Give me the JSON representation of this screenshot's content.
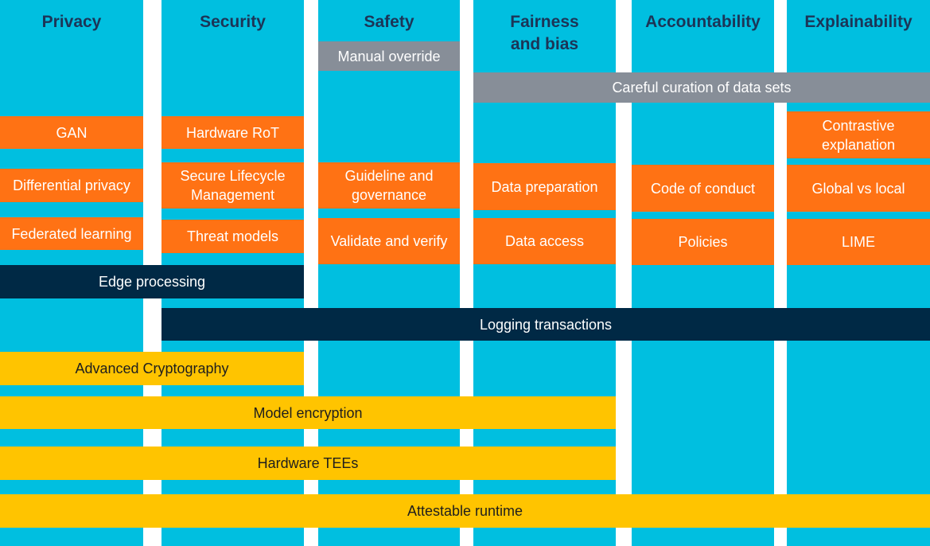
{
  "columns": [
    {
      "title": "Privacy"
    },
    {
      "title": "Security"
    },
    {
      "title": "Safety"
    },
    {
      "title": "Fairness\nand bias"
    },
    {
      "title": "Accountability"
    },
    {
      "title": "Explainability"
    }
  ],
  "items": {
    "manual_override": "Manual override",
    "careful_curation": "Careful curation of data sets",
    "gan": "GAN",
    "differential_privacy": "Differential privacy",
    "federated_learning": "Federated learning",
    "hardware_rot": "Hardware RoT",
    "secure_lifecycle": "Secure Lifecycle\nManagement",
    "threat_models": "Threat models",
    "guideline_governance": "Guideline and\ngovernance",
    "validate_verify": "Validate and verify",
    "data_preparation": "Data preparation",
    "data_access": "Data access",
    "code_of_conduct": "Code of conduct",
    "policies": "Policies",
    "contrastive_explanation": "Contrastive\nexplanation",
    "global_vs_local": "Global vs local",
    "lime": "LIME",
    "edge_processing": "Edge processing",
    "logging_transactions": "Logging transactions",
    "advanced_cryptography": "Advanced Cryptography",
    "model_encryption": "Model encryption",
    "hardware_tees": "Hardware TEEs",
    "attestable_runtime": "Attestable runtime"
  },
  "colors": {
    "column_bg": "#00bfe0",
    "title_text": "#1c3557",
    "orange": "#ff7214",
    "grey": "#878e98",
    "navy": "#002945",
    "yellow": "#ffc400"
  }
}
